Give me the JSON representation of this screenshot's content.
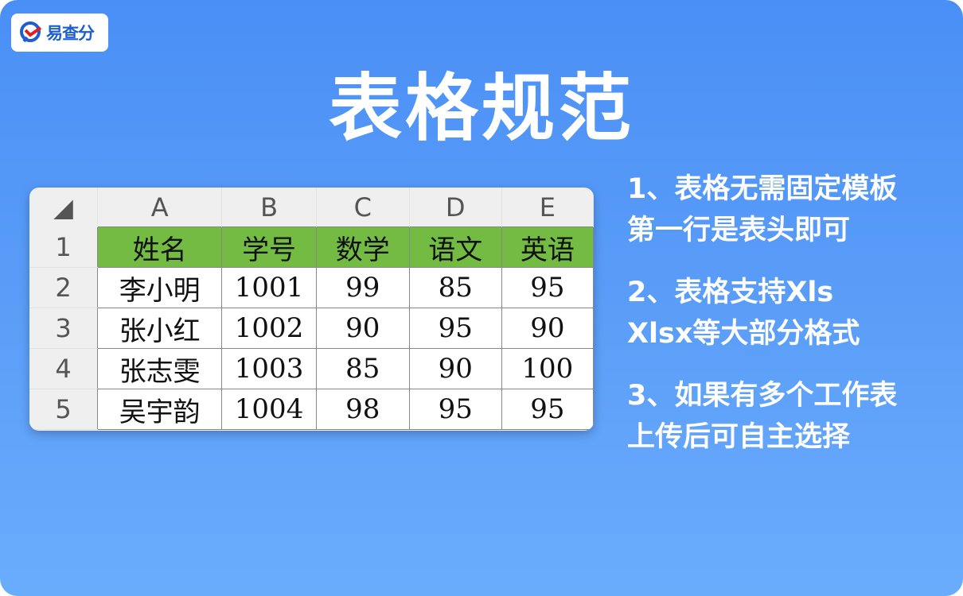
{
  "logo": {
    "text": "易查分"
  },
  "title": "表格规范",
  "sheet": {
    "columns": [
      "A",
      "B",
      "C",
      "D",
      "E"
    ],
    "row_numbers": [
      "1",
      "2",
      "3",
      "4",
      "5"
    ],
    "header": [
      "姓名",
      "学号",
      "数学",
      "语文",
      "英语"
    ],
    "rows": [
      [
        "李小明",
        "1001",
        "99",
        "85",
        "95"
      ],
      [
        "张小红",
        "1002",
        "90",
        "95",
        "90"
      ],
      [
        "张志雯",
        "1003",
        "85",
        "90",
        "100"
      ],
      [
        "吴宇韵",
        "1004",
        "98",
        "95",
        "95"
      ]
    ],
    "header_color": "#74bb44"
  },
  "notes": [
    {
      "line1": "1、表格无需固定模板",
      "line2": "第一行是表头即可"
    },
    {
      "line1": "2、表格支持Xls",
      "line2": "Xlsx等大部分格式"
    },
    {
      "line1": "3、如果有多个工作表",
      "line2": "上传后可自主选择"
    }
  ]
}
